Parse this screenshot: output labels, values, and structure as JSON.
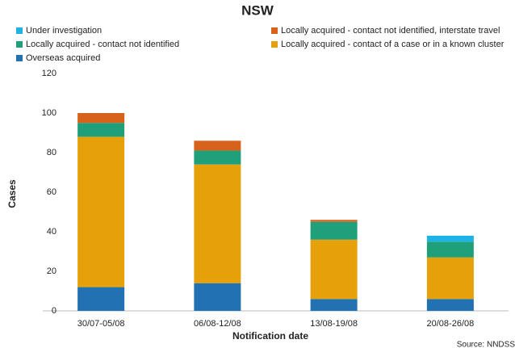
{
  "chart_data": {
    "type": "stacked-bar",
    "title": "NSW",
    "categories": [
      "30/07-05/08",
      "06/08-12/08",
      "13/08-19/08",
      "20/08-26/08"
    ],
    "series": [
      {
        "name": "Overseas acquired",
        "color": "#2271b3",
        "values": [
          12,
          14,
          6,
          6
        ]
      },
      {
        "name": "Locally acquired - contact of a case or in a known cluster",
        "color": "#e6a10a",
        "values": [
          76,
          60,
          30,
          21
        ]
      },
      {
        "name": "Locally acquired - contact not identified",
        "color": "#20a07a",
        "values": [
          7,
          7,
          9,
          8
        ]
      },
      {
        "name": "Locally acquired - contact not identified, interstate travel",
        "color": "#d7621c",
        "values": [
          5,
          5,
          1,
          0
        ]
      },
      {
        "name": "Under investigation",
        "color": "#1fb2e6",
        "values": [
          0,
          0,
          0,
          3
        ]
      }
    ],
    "ylim": [
      0,
      120
    ],
    "yticks": [
      0,
      20,
      40,
      60,
      80,
      100,
      120
    ],
    "grid": false,
    "x_label": "Notification date",
    "y_label": "Cases",
    "source": "Source: NNDSS"
  }
}
